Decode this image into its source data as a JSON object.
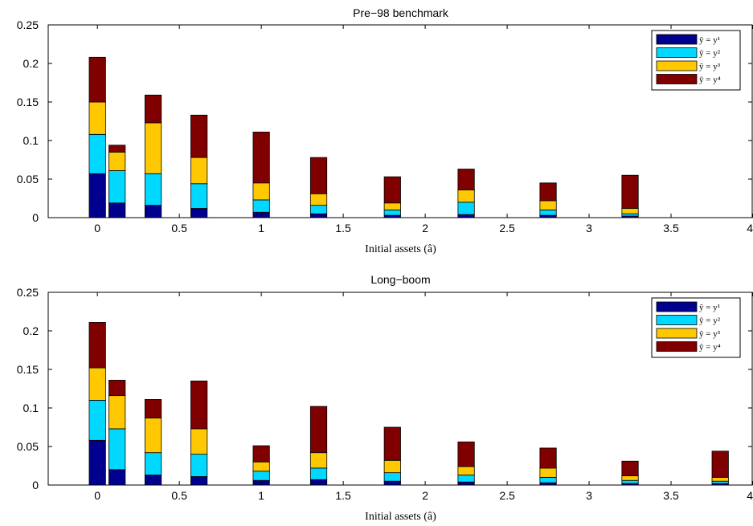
{
  "chart_data": [
    {
      "type": "bar",
      "stacked": true,
      "title": "Pre−98 benchmark",
      "xlabel": "Initial assets (â)",
      "ylabel": "",
      "xlim": [
        -0.3,
        4
      ],
      "ylim": [
        0,
        0.25
      ],
      "xticks": [
        0,
        0.5,
        1,
        1.5,
        2,
        2.5,
        3,
        3.5,
        4
      ],
      "xtick_labels": [
        "0",
        "0.5",
        "1",
        "1.5",
        "2",
        "2.5",
        "3",
        "3.5",
        "4"
      ],
      "yticks": [
        0,
        0.05,
        0.1,
        0.15,
        0.2,
        0.25
      ],
      "ytick_labels": [
        "0",
        "0.05",
        "0.1",
        "0.15",
        "0.2",
        "0.25"
      ],
      "bar_width": 0.1,
      "legend_position": "top-right",
      "x": [
        0,
        0.12,
        0.34,
        0.62,
        1.0,
        1.35,
        1.8,
        2.25,
        2.75,
        3.25
      ],
      "series": [
        {
          "name": "ŷ = y¹",
          "color": "#00008f",
          "values": [
            0.057,
            0.019,
            0.016,
            0.012,
            0.007,
            0.005,
            0.003,
            0.004,
            0.003,
            0.002
          ]
        },
        {
          "name": "ŷ = y²",
          "color": "#00d8ff",
          "values": [
            0.051,
            0.042,
            0.041,
            0.032,
            0.016,
            0.011,
            0.007,
            0.016,
            0.007,
            0.003
          ]
        },
        {
          "name": "ŷ = y³",
          "color": "#ffc800",
          "values": [
            0.042,
            0.024,
            0.066,
            0.034,
            0.022,
            0.015,
            0.009,
            0.016,
            0.012,
            0.007
          ]
        },
        {
          "name": "ŷ = y⁴",
          "color": "#800000",
          "values": [
            0.058,
            0.009,
            0.036,
            0.055,
            0.066,
            0.047,
            0.034,
            0.027,
            0.023,
            0.043
          ]
        }
      ]
    },
    {
      "type": "bar",
      "stacked": true,
      "title": "Long−boom",
      "xlabel": "Initial assets (â)",
      "ylabel": "",
      "xlim": [
        -0.3,
        4
      ],
      "ylim": [
        0,
        0.25
      ],
      "xticks": [
        0,
        0.5,
        1,
        1.5,
        2,
        2.5,
        3,
        3.5,
        4
      ],
      "xtick_labels": [
        "0",
        "0.5",
        "1",
        "1.5",
        "2",
        "2.5",
        "3",
        "3.5",
        "4"
      ],
      "yticks": [
        0,
        0.05,
        0.1,
        0.15,
        0.2,
        0.25
      ],
      "ytick_labels": [
        "0",
        "0.05",
        "0.1",
        "0.15",
        "0.2",
        "0.25"
      ],
      "bar_width": 0.1,
      "legend_position": "top-right",
      "x": [
        0,
        0.12,
        0.34,
        0.62,
        1.0,
        1.35,
        1.8,
        2.25,
        2.75,
        3.25,
        3.8
      ],
      "series": [
        {
          "name": "ŷ = y¹",
          "color": "#00008f",
          "values": [
            0.058,
            0.02,
            0.013,
            0.011,
            0.006,
            0.007,
            0.005,
            0.004,
            0.003,
            0.002,
            0.002
          ]
        },
        {
          "name": "ŷ = y²",
          "color": "#00d8ff",
          "values": [
            0.052,
            0.053,
            0.029,
            0.029,
            0.012,
            0.015,
            0.011,
            0.009,
            0.007,
            0.004,
            0.003
          ]
        },
        {
          "name": "ŷ = y³",
          "color": "#ffc800",
          "values": [
            0.042,
            0.043,
            0.045,
            0.033,
            0.012,
            0.02,
            0.016,
            0.011,
            0.012,
            0.006,
            0.005
          ]
        },
        {
          "name": "ŷ = y⁴",
          "color": "#800000",
          "values": [
            0.059,
            0.02,
            0.024,
            0.062,
            0.021,
            0.06,
            0.043,
            0.032,
            0.026,
            0.019,
            0.034
          ]
        }
      ]
    }
  ]
}
